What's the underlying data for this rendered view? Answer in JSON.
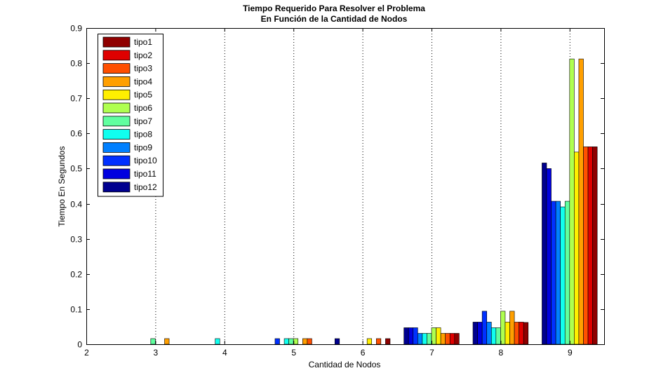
{
  "chart_data": {
    "type": "bar",
    "title": [
      "Tiempo Requerido Para Resolver el Problema",
      "En Función de la Cantidad de Nodos"
    ],
    "xlabel": "Cantidad de Nodos",
    "ylabel": "Tiempo En Segundos",
    "xlim": [
      2,
      9.5
    ],
    "ylim": [
      0,
      0.9
    ],
    "xticks": [
      2,
      3,
      4,
      5,
      6,
      7,
      8,
      9
    ],
    "yticks": [
      0,
      0.1,
      0.2,
      0.3,
      0.4,
      0.5,
      0.6,
      0.7,
      0.8,
      0.9
    ],
    "ytick_labels": [
      "0",
      "0.1",
      "0.2",
      "0.3",
      "0.4",
      "0.5",
      "0.6",
      "0.7",
      "0.8",
      "0.9"
    ],
    "grid": "x dotted",
    "legend_position": "top-left",
    "categories": [
      3,
      4,
      5,
      6,
      7,
      8,
      9
    ],
    "series": [
      {
        "name": "tipo12",
        "color": "#00008f",
        "values": [
          0,
          0,
          0,
          0.016,
          0.047,
          0.063,
          0.516
        ]
      },
      {
        "name": "tipo11",
        "color": "#0000df",
        "values": [
          0,
          0,
          0,
          0,
          0.047,
          0.063,
          0.5
        ]
      },
      {
        "name": "tipo10",
        "color": "#0030ff",
        "values": [
          0,
          0,
          0.016,
          0,
          0.047,
          0.094,
          0.407
        ]
      },
      {
        "name": "tipo9",
        "color": "#0080ff",
        "values": [
          0,
          0,
          0,
          0,
          0.031,
          0.063,
          0.407
        ]
      },
      {
        "name": "tipo8",
        "color": "#10ffef",
        "values": [
          0,
          0.016,
          0.016,
          0,
          0.031,
          0.047,
          0.391
        ]
      },
      {
        "name": "tipo7",
        "color": "#60ff9f",
        "values": [
          0.016,
          0,
          0.016,
          0,
          0.031,
          0.047,
          0.407
        ]
      },
      {
        "name": "tipo6",
        "color": "#afff50",
        "values": [
          0,
          0,
          0.016,
          0,
          0.047,
          0.094,
          0.812
        ]
      },
      {
        "name": "tipo5",
        "color": "#ffef00",
        "values": [
          0,
          0,
          0,
          0.016,
          0.047,
          0.063,
          0.547
        ]
      },
      {
        "name": "tipo4",
        "color": "#ff9f00",
        "values": [
          0.016,
          0,
          0.016,
          0,
          0.031,
          0.094,
          0.812
        ]
      },
      {
        "name": "tipo3",
        "color": "#ff4f00",
        "values": [
          0,
          0,
          0.016,
          0.016,
          0.031,
          0.063,
          0.562
        ]
      },
      {
        "name": "tipo2",
        "color": "#df0000",
        "values": [
          0,
          0,
          0,
          0,
          0.031,
          0.063,
          0.562
        ]
      },
      {
        "name": "tipo1",
        "color": "#8f0000",
        "values": [
          0,
          0,
          0,
          0.016,
          0.031,
          0.062,
          0.562
        ]
      }
    ]
  }
}
